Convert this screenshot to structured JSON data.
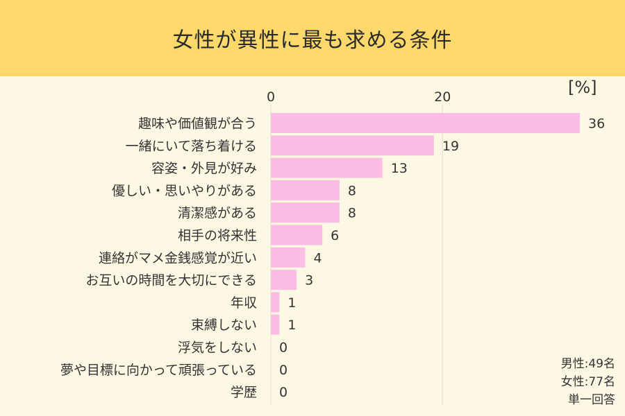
{
  "title": "女性が異性に最も求める条件",
  "unit_label": "[%]",
  "notes": [
    "男性:49名",
    "女性:77名",
    "単一回答"
  ],
  "colors": {
    "header_bg": "#fcd96a",
    "page_bg": "#fdf8e4",
    "bar": "#fbbde4",
    "gridline": "#e3dccb"
  },
  "chart_data": {
    "type": "bar",
    "orientation": "horizontal",
    "categories": [
      "趣味や価値観が合う",
      "一緒にいて落ち着ける",
      "容姿・外見が好み",
      "優しい・思いやりがある",
      "清潔感がある",
      "相手の将来性",
      "連絡がマメ金銭感覚が近い",
      "お互いの時間を大切にできる",
      "年収",
      "束縛しない",
      "浮気をしない",
      "夢や目標に向かって頑張っている",
      "学歴"
    ],
    "values": [
      36,
      19,
      13,
      8,
      8,
      6,
      4,
      3,
      1,
      1,
      0,
      0,
      0
    ],
    "xticks": [
      0,
      20
    ],
    "xlim": [
      0,
      36
    ],
    "grid": true,
    "xaxis_position": "top"
  }
}
